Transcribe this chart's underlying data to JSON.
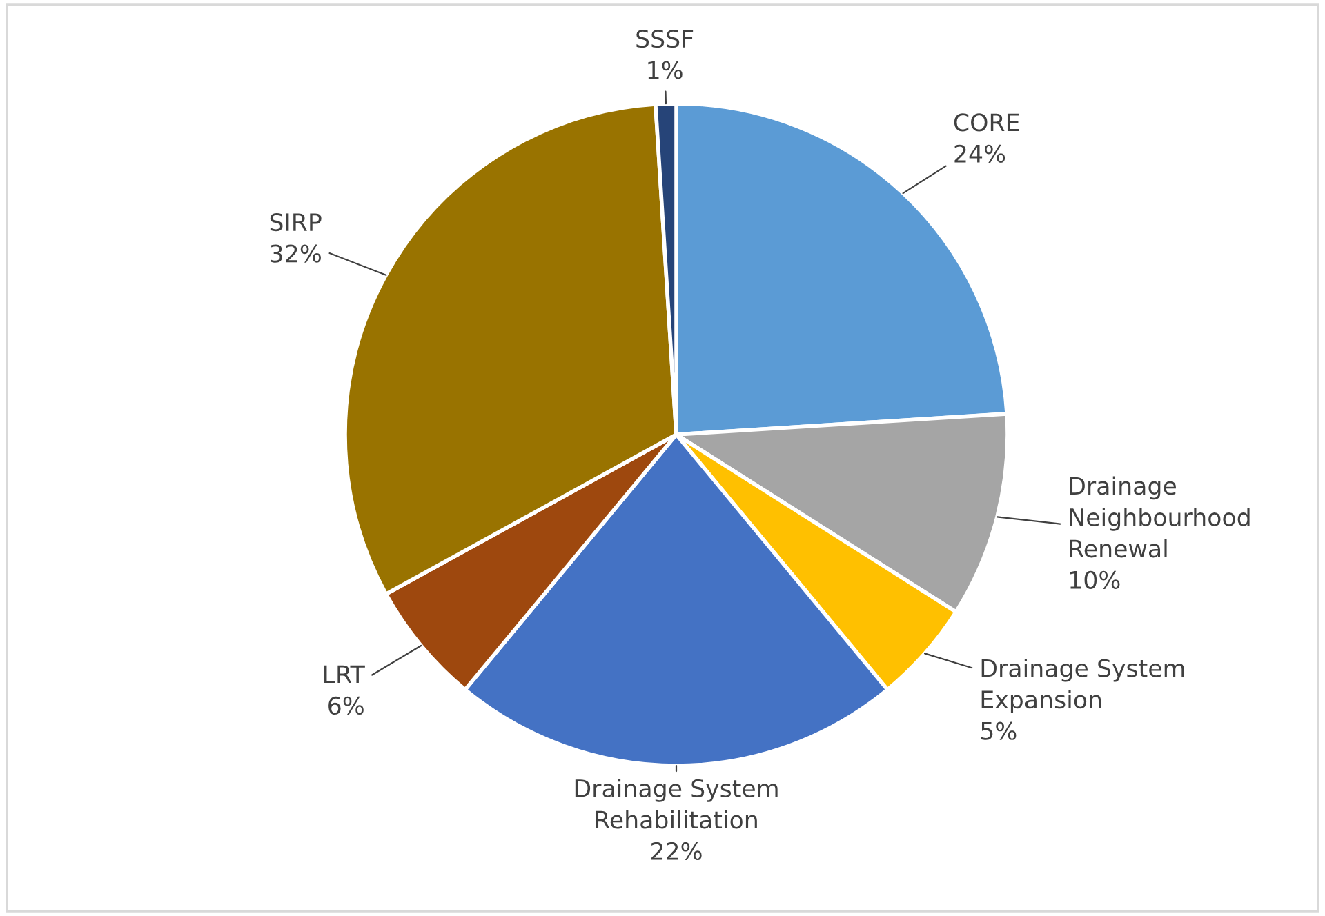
{
  "chart_data": {
    "type": "pie",
    "categories": [
      "CORE",
      "Drainage\nNeighbourhood\nRenewal",
      "Drainage System\nExpansion",
      "Drainage System\nRehabilitation",
      "LRT",
      "SIRP",
      "SSSF"
    ],
    "values": [
      24,
      10,
      5,
      22,
      6,
      32,
      1
    ],
    "colors": [
      "#5b9bd5",
      "#a5a5a5",
      "#ffc000",
      "#4472c4",
      "#9e480e",
      "#997300",
      "#264478"
    ],
    "value_labels": [
      "24%",
      "10%",
      "5%",
      "22%",
      "6%",
      "32%",
      "1%"
    ],
    "legend": false
  }
}
